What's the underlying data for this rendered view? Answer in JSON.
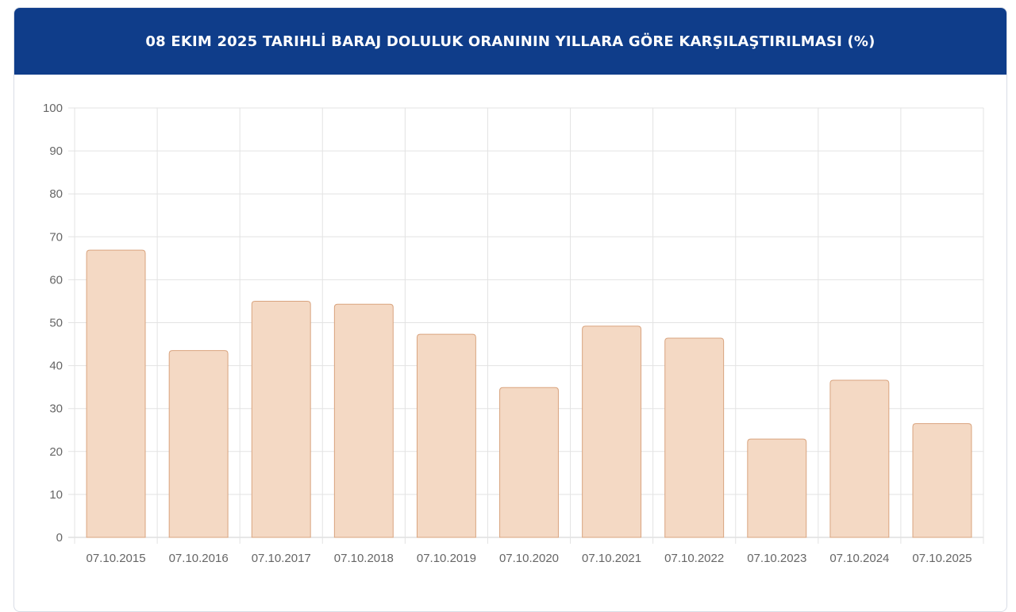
{
  "header": {
    "title": "08 EKIM 2025 TARIHLİ BARAJ DOLULUK ORANININ YILLARA GÖRE KARŞILAŞTIRILMASI (%)"
  },
  "chart_data": {
    "type": "bar",
    "title": "08 EKIM 2025 TARIHLİ BARAJ DOLULUK ORANININ YILLARA GÖRE KARŞILAŞTIRILMASI (%)",
    "categories": [
      "07.10.2015",
      "07.10.2016",
      "07.10.2017",
      "07.10.2018",
      "07.10.2019",
      "07.10.2020",
      "07.10.2021",
      "07.10.2022",
      "07.10.2023",
      "07.10.2024",
      "07.10.2025"
    ],
    "values": [
      66.9,
      43.5,
      55.0,
      54.3,
      47.3,
      34.9,
      49.2,
      46.4,
      22.9,
      36.6,
      26.5
    ],
    "xlabel": "",
    "ylabel": "",
    "ylim": [
      0,
      100
    ],
    "yticks": [
      0,
      10,
      20,
      30,
      40,
      50,
      60,
      70,
      80,
      90,
      100
    ],
    "grid": true,
    "legend": "none",
    "colors": {
      "bar_fill": "#f4d9c4",
      "bar_stroke": "#d9a47f",
      "grid": "#e3e3e3",
      "header_bg": "#0f3d8a"
    }
  }
}
